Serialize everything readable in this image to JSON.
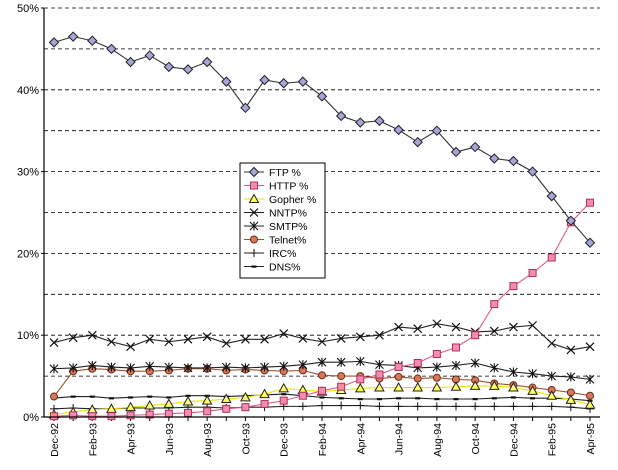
{
  "chart_data": {
    "type": "line",
    "title": "",
    "xlabel": "",
    "ylabel": "",
    "ylim": [
      0,
      50
    ],
    "y_tick_labels": [
      "0%",
      "10%",
      "20%",
      "30%",
      "40%",
      "50%"
    ],
    "y_tick_values": [
      0,
      10,
      20,
      30,
      40,
      50
    ],
    "x_tick_labels": [
      "Dec-92",
      "Feb-93",
      "Apr-93",
      "Jun-93",
      "Aug-93",
      "Oct-93",
      "Dec-93",
      "Feb-94",
      "Apr-94",
      "Jun-94",
      "Aug-94",
      "Oct-94",
      "Dec-94",
      "Feb-95",
      "Apr-95"
    ],
    "grid": "horizontal dashed at 5% steps",
    "legend_position": "center-left",
    "categories": [
      "Dec-92",
      "Jan-93",
      "Feb-93",
      "Mar-93",
      "Apr-93",
      "May-93",
      "Jun-93",
      "Jul-93",
      "Aug-93",
      "Sep-93",
      "Oct-93",
      "Nov-93",
      "Dec-93",
      "Jan-94",
      "Feb-94",
      "Mar-94",
      "Apr-94",
      "May-94",
      "Jun-94",
      "Jul-94",
      "Aug-94",
      "Sep-94",
      "Oct-94",
      "Nov-94",
      "Dec-94",
      "Jan-95",
      "Feb-95",
      "Mar-95",
      "Apr-95"
    ],
    "series": [
      {
        "name": "FTP %",
        "marker": "diamond",
        "color": "#333333",
        "values": [
          45.8,
          46.5,
          46.0,
          45.0,
          43.4,
          44.2,
          42.8,
          42.5,
          43.4,
          41.0,
          37.8,
          41.2,
          40.8,
          41.0,
          39.2,
          36.8,
          36.0,
          36.2,
          35.1,
          33.6,
          35.0,
          32.4,
          33.0,
          31.6,
          31.3,
          30.0,
          27.0,
          24.0,
          21.3
        ]
      },
      {
        "name": "HTTP %",
        "marker": "square",
        "color": "#e05a8a",
        "values": [
          0.1,
          0.2,
          0.1,
          0.1,
          0.2,
          0.3,
          0.4,
          0.5,
          0.7,
          1.0,
          1.2,
          1.6,
          2.0,
          2.6,
          3.2,
          3.7,
          4.6,
          5.2,
          6.1,
          6.6,
          7.7,
          8.5,
          10.0,
          13.8,
          16.0,
          17.6,
          19.5,
          23.8,
          26.2
        ]
      },
      {
        "name": "Gopher %",
        "marker": "triangle",
        "color": "#e6e600",
        "values": [
          0.3,
          0.6,
          0.9,
          1.0,
          1.2,
          1.4,
          1.6,
          1.9,
          2.0,
          2.2,
          2.4,
          2.8,
          3.5,
          3.3,
          3.1,
          3.3,
          3.5,
          3.6,
          3.6,
          3.6,
          3.6,
          3.7,
          3.8,
          3.8,
          3.6,
          3.2,
          2.6,
          2.1,
          1.5
        ]
      },
      {
        "name": "NNTP%",
        "marker": "x",
        "color": "#222222",
        "values": [
          9.1,
          9.7,
          10.0,
          9.2,
          8.6,
          9.5,
          9.2,
          9.5,
          9.8,
          9.0,
          9.5,
          9.5,
          10.2,
          9.6,
          9.2,
          9.6,
          9.8,
          10.0,
          11.0,
          10.8,
          11.4,
          11.0,
          10.4,
          10.5,
          11.0,
          11.2,
          9.0,
          8.2,
          8.6
        ]
      },
      {
        "name": "SMTP%",
        "marker": "star",
        "color": "#222222",
        "values": [
          5.9,
          6.0,
          6.3,
          6.1,
          6.0,
          6.2,
          6.1,
          6.0,
          6.0,
          6.1,
          6.0,
          6.1,
          6.2,
          6.4,
          6.7,
          6.7,
          6.8,
          6.4,
          6.3,
          6.0,
          6.1,
          6.3,
          6.6,
          6.0,
          5.5,
          5.3,
          5.0,
          4.9,
          4.6
        ]
      },
      {
        "name": "Telnet%",
        "marker": "circle",
        "color": "#a0522d",
        "values": [
          2.5,
          5.6,
          5.9,
          5.8,
          5.6,
          5.6,
          5.7,
          5.9,
          5.9,
          5.7,
          5.8,
          5.7,
          5.6,
          5.7,
          5.1,
          5.0,
          5.0,
          4.7,
          4.9,
          4.7,
          4.8,
          4.6,
          4.5,
          4.1,
          3.9,
          3.6,
          3.3,
          3.0,
          2.6
        ]
      },
      {
        "name": "IRC%",
        "marker": "plus",
        "color": "#222222",
        "values": [
          1.0,
          1.1,
          1.0,
          1.0,
          1.1,
          1.1,
          1.1,
          1.2,
          1.2,
          1.1,
          1.2,
          1.2,
          1.3,
          1.3,
          1.4,
          1.4,
          1.4,
          1.3,
          1.3,
          1.3,
          1.3,
          1.3,
          1.3,
          1.3,
          1.3,
          1.3,
          1.3,
          1.2,
          1.0
        ]
      },
      {
        "name": "DNS%",
        "marker": "dash",
        "color": "#222222",
        "values": [
          2.3,
          2.5,
          2.5,
          2.3,
          2.4,
          2.5,
          2.4,
          2.6,
          2.6,
          2.5,
          2.6,
          2.7,
          2.8,
          2.6,
          2.4,
          2.3,
          2.2,
          2.2,
          2.3,
          2.3,
          2.2,
          2.2,
          2.2,
          2.3,
          2.4,
          2.3,
          2.3,
          2.2,
          2.0
        ]
      }
    ]
  }
}
